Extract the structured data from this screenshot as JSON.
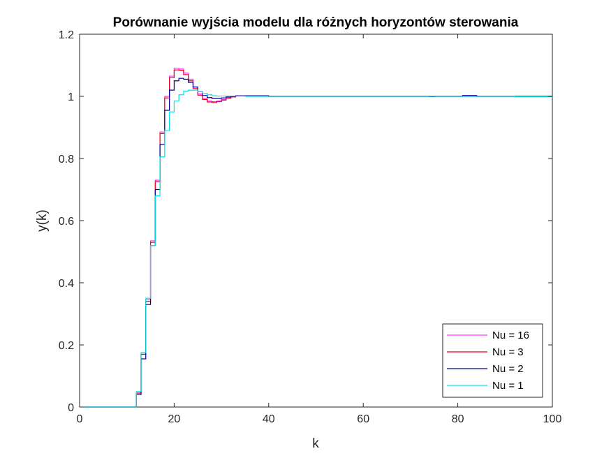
{
  "chart_data": {
    "type": "line",
    "title": "Porównanie wyjścia modelu dla różnych horyzontów sterowania",
    "xlabel": "k",
    "ylabel": "y(k)",
    "xlim": [
      0,
      100
    ],
    "ylim": [
      0,
      1.2
    ],
    "xticks": [
      0,
      20,
      40,
      60,
      80,
      100
    ],
    "yticks": [
      0,
      0.2,
      0.4,
      0.6,
      0.8,
      1,
      1.2
    ],
    "ytick_labels": [
      "0",
      "0.2",
      "0.4",
      "0.6",
      "0.8",
      "1",
      "1.2"
    ],
    "grid": false,
    "legend_position": "bottom-right",
    "step": true,
    "series": [
      {
        "name": "Nu = 16",
        "color": "#ff33ff",
        "points": [
          [
            1,
            0
          ],
          [
            12,
            0
          ],
          [
            12,
            0.045
          ],
          [
            13,
            0.045
          ],
          [
            13,
            0.175
          ],
          [
            14,
            0.175
          ],
          [
            14,
            0.345
          ],
          [
            15,
            0.345
          ],
          [
            15,
            0.535
          ],
          [
            16,
            0.535
          ],
          [
            16,
            0.73
          ],
          [
            17,
            0.73
          ],
          [
            17,
            0.885
          ],
          [
            18,
            0.885
          ],
          [
            18,
            1.0
          ],
          [
            19,
            1.0
          ],
          [
            19,
            1.065
          ],
          [
            20,
            1.065
          ],
          [
            20,
            1.09
          ],
          [
            21,
            1.09
          ],
          [
            21,
            1.088
          ],
          [
            22,
            1.088
          ],
          [
            22,
            1.075
          ],
          [
            23,
            1.075
          ],
          [
            23,
            1.055
          ],
          [
            24,
            1.055
          ],
          [
            24,
            1.03
          ],
          [
            25,
            1.03
          ],
          [
            25,
            1.008
          ],
          [
            26,
            1.008
          ],
          [
            26,
            0.993
          ],
          [
            27,
            0.993
          ],
          [
            27,
            0.985
          ],
          [
            28,
            0.985
          ],
          [
            28,
            0.983
          ],
          [
            29,
            0.983
          ],
          [
            29,
            0.985
          ],
          [
            30,
            0.985
          ],
          [
            30,
            0.99
          ],
          [
            31,
            0.99
          ],
          [
            31,
            0.995
          ],
          [
            32,
            0.995
          ],
          [
            32,
            0.999
          ],
          [
            33,
            0.999
          ],
          [
            33,
            1.001
          ],
          [
            40,
            1.001
          ],
          [
            40,
            1.0
          ],
          [
            100,
            1.0
          ]
        ]
      },
      {
        "name": "Nu = 3",
        "color": "#e6001a",
        "points": [
          [
            1,
            0
          ],
          [
            12,
            0
          ],
          [
            12,
            0.045
          ],
          [
            13,
            0.045
          ],
          [
            13,
            0.17
          ],
          [
            14,
            0.17
          ],
          [
            14,
            0.34
          ],
          [
            15,
            0.34
          ],
          [
            15,
            0.53
          ],
          [
            16,
            0.53
          ],
          [
            16,
            0.725
          ],
          [
            17,
            0.725
          ],
          [
            17,
            0.88
          ],
          [
            18,
            0.88
          ],
          [
            18,
            0.995
          ],
          [
            19,
            0.995
          ],
          [
            19,
            1.06
          ],
          [
            20,
            1.06
          ],
          [
            20,
            1.085
          ],
          [
            21,
            1.085
          ],
          [
            21,
            1.084
          ],
          [
            22,
            1.084
          ],
          [
            22,
            1.07
          ],
          [
            23,
            1.07
          ],
          [
            23,
            1.05
          ],
          [
            24,
            1.05
          ],
          [
            24,
            1.025
          ],
          [
            25,
            1.025
          ],
          [
            25,
            1.004
          ],
          [
            26,
            1.004
          ],
          [
            26,
            0.99
          ],
          [
            27,
            0.99
          ],
          [
            27,
            0.982
          ],
          [
            28,
            0.982
          ],
          [
            28,
            0.98
          ],
          [
            29,
            0.98
          ],
          [
            29,
            0.983
          ],
          [
            30,
            0.983
          ],
          [
            30,
            0.988
          ],
          [
            31,
            0.988
          ],
          [
            31,
            0.994
          ],
          [
            32,
            0.994
          ],
          [
            32,
            0.998
          ],
          [
            33,
            0.998
          ],
          [
            33,
            1.001
          ],
          [
            40,
            1.001
          ],
          [
            40,
            1.0
          ],
          [
            100,
            1.0
          ]
        ]
      },
      {
        "name": "Nu = 2",
        "color": "#000099",
        "points": [
          [
            1,
            0
          ],
          [
            12,
            0
          ],
          [
            12,
            0.04
          ],
          [
            13,
            0.04
          ],
          [
            13,
            0.155
          ],
          [
            14,
            0.155
          ],
          [
            14,
            0.33
          ],
          [
            15,
            0.33
          ],
          [
            15,
            0.52
          ],
          [
            16,
            0.52
          ],
          [
            16,
            0.7
          ],
          [
            17,
            0.7
          ],
          [
            17,
            0.845
          ],
          [
            18,
            0.845
          ],
          [
            18,
            0.955
          ],
          [
            19,
            0.955
          ],
          [
            19,
            1.02
          ],
          [
            20,
            1.02
          ],
          [
            20,
            1.05
          ],
          [
            21,
            1.05
          ],
          [
            21,
            1.058
          ],
          [
            22,
            1.058
          ],
          [
            22,
            1.055
          ],
          [
            23,
            1.055
          ],
          [
            23,
            1.045
          ],
          [
            24,
            1.045
          ],
          [
            24,
            1.03
          ],
          [
            25,
            1.03
          ],
          [
            25,
            1.015
          ],
          [
            26,
            1.015
          ],
          [
            26,
            1.003
          ],
          [
            27,
            1.003
          ],
          [
            27,
            0.996
          ],
          [
            28,
            0.996
          ],
          [
            28,
            0.993
          ],
          [
            29,
            0.993
          ],
          [
            29,
            0.993
          ],
          [
            30,
            0.993
          ],
          [
            30,
            0.995
          ],
          [
            31,
            0.995
          ],
          [
            31,
            0.998
          ],
          [
            32,
            0.998
          ],
          [
            32,
            1.0
          ],
          [
            33,
            1.0
          ],
          [
            33,
            1.002
          ],
          [
            40,
            1.002
          ],
          [
            40,
            1.0
          ],
          [
            74,
            1.0
          ],
          [
            74,
            0.999
          ],
          [
            75,
            0.999
          ],
          [
            75,
            1.0
          ],
          [
            81,
            1.0
          ],
          [
            81,
            1.003
          ],
          [
            84,
            1.003
          ],
          [
            84,
            1.0
          ],
          [
            100,
            1.0
          ]
        ]
      },
      {
        "name": "Nu = 1",
        "color": "#00e6e6",
        "points": [
          [
            1,
            0
          ],
          [
            12,
            0
          ],
          [
            12,
            0.05
          ],
          [
            13,
            0.05
          ],
          [
            13,
            0.175
          ],
          [
            14,
            0.175
          ],
          [
            14,
            0.35
          ],
          [
            15,
            0.35
          ],
          [
            15,
            0.52
          ],
          [
            16,
            0.52
          ],
          [
            16,
            0.68
          ],
          [
            17,
            0.68
          ],
          [
            17,
            0.805
          ],
          [
            18,
            0.805
          ],
          [
            18,
            0.89
          ],
          [
            19,
            0.89
          ],
          [
            19,
            0.95
          ],
          [
            20,
            0.95
          ],
          [
            20,
            0.985
          ],
          [
            21,
            0.985
          ],
          [
            21,
            1.005
          ],
          [
            22,
            1.005
          ],
          [
            22,
            1.017
          ],
          [
            23,
            1.017
          ],
          [
            23,
            1.02
          ],
          [
            25,
            1.02
          ],
          [
            25,
            1.015
          ],
          [
            26,
            1.015
          ],
          [
            26,
            1.01
          ],
          [
            27,
            1.01
          ],
          [
            27,
            1.005
          ],
          [
            28,
            1.005
          ],
          [
            28,
            1.002
          ],
          [
            29,
            1.002
          ],
          [
            29,
            1.001
          ],
          [
            35,
            1.001
          ],
          [
            35,
            1.0
          ],
          [
            92,
            1.0
          ],
          [
            92,
            0.999
          ],
          [
            100,
            0.999
          ]
        ]
      }
    ]
  }
}
